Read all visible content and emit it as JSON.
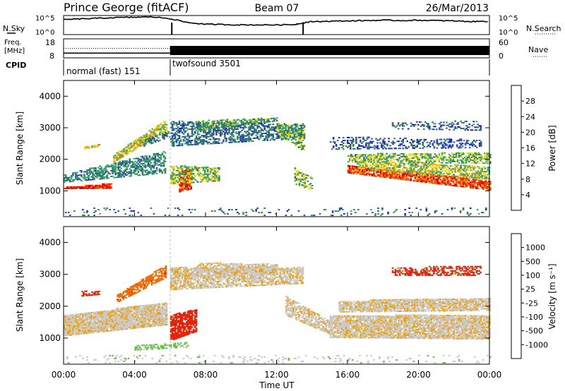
{
  "header": {
    "station": "Prince George (fitACF)",
    "beam": "Beam 07",
    "date": "26/Mar/2013"
  },
  "top_panel": {
    "left_label": "N.Sky",
    "right_label": "N.Search",
    "ticks": [
      "10^5",
      "10^0"
    ]
  },
  "freq_panel": {
    "left_label_1": "Freq.",
    "left_label_2": "[MHz]",
    "left_ticks": [
      "18",
      "8"
    ],
    "right_ticks": [
      "60",
      "0"
    ],
    "right_label": "Nave"
  },
  "cpid": {
    "label": "CPID",
    "segments": [
      {
        "name": "normal (fast) 151",
        "start_hour": 0.0,
        "end_hour": 6.0
      },
      {
        "name": "twofsound 3501",
        "start_hour": 6.0,
        "end_hour": 24.0
      }
    ]
  },
  "colors": {
    "power_scale": [
      "#1010ee",
      "#2a4aa8",
      "#2e7b4e",
      "#35a86a",
      "#f0d400",
      "#f09000",
      "#ef4a00",
      "#e00000"
    ],
    "velocity_scale": [
      "#1515c8",
      "#2f64b0",
      "#2c8a48",
      "#60c040",
      "#c8c8c8",
      "#c8c8c8",
      "#f0a000",
      "#ee6a00",
      "#e81c00",
      "#e00000"
    ]
  },
  "chart_data": [
    {
      "type": "heatmap",
      "title": "Power",
      "xlabel": "Time UT",
      "ylabel": "Slant Range [km]",
      "x_ticks": [
        "00:00",
        "04:00",
        "08:00",
        "12:00",
        "16:00",
        "20:00",
        "00:00"
      ],
      "y_ticks": [
        "1000",
        "2000",
        "3000",
        "4000"
      ],
      "xlim": [
        0,
        24
      ],
      "ylim": [
        180,
        4500
      ],
      "colorbar": {
        "label": "Power [dB]",
        "ticks": [
          "4",
          "8",
          "12",
          "16",
          "20",
          "24",
          "28"
        ],
        "range": [
          0,
          30
        ]
      },
      "regions": [
        {
          "t0": 0.0,
          "t1": 2.7,
          "r_start": [
            1050,
            1060
          ],
          "r_end": [
            1090,
            1220
          ],
          "val": 27,
          "density": 0.95
        },
        {
          "t0": 0.0,
          "t1": 5.7,
          "r_start": [
            1250,
            1550
          ],
          "r_end": [
            1500,
            2250
          ],
          "val": 10,
          "density": 0.6
        },
        {
          "t0": 1.0,
          "t1": 2.0,
          "r_start": [
            2300,
            2400
          ],
          "r_end": [
            2380,
            2480
          ],
          "val": 18,
          "density": 0.7
        },
        {
          "t0": 2.8,
          "t1": 5.8,
          "r_start": [
            1900,
            2900
          ],
          "r_end": [
            2150,
            3250
          ],
          "val": 17,
          "density": 0.75
        },
        {
          "t0": 4.5,
          "t1": 6.0,
          "r_start": [
            2400,
            2700
          ],
          "r_end": [
            2600,
            2900
          ],
          "val": 8,
          "density": 0.5
        },
        {
          "t0": 6.5,
          "t1": 7.2,
          "r_start": [
            950,
            1050
          ],
          "r_end": [
            1600,
            1700
          ],
          "val": 25,
          "density": 0.85
        },
        {
          "t0": 6.0,
          "t1": 8.8,
          "r_start": [
            1200,
            1300
          ],
          "r_end": [
            1800,
            1700
          ],
          "val": 14,
          "density": 0.6
        },
        {
          "t0": 6.0,
          "t1": 13.5,
          "r_start": [
            2400,
            2650
          ],
          "r_end": [
            3200,
            3100
          ],
          "val": 8,
          "density": 0.55
        },
        {
          "t0": 7.5,
          "t1": 12.0,
          "r_start": [
            2900,
            3200
          ],
          "r_end": [
            3200,
            3300
          ],
          "val": 12,
          "density": 0.6
        },
        {
          "t0": 12.0,
          "t1": 13.6,
          "r_start": [
            2800,
            2200
          ],
          "r_end": [
            3100,
            3050
          ],
          "val": 13,
          "density": 0.6
        },
        {
          "t0": 13.0,
          "t1": 14.0,
          "r_start": [
            1200,
            1000
          ],
          "r_end": [
            1700,
            1400
          ],
          "val": 14,
          "density": 0.5
        },
        {
          "t0": 16.0,
          "t1": 24.0,
          "r_start": [
            1550,
            1000
          ],
          "r_end": [
            1800,
            1300
          ],
          "val": 25,
          "density": 0.8
        },
        {
          "t0": 16.5,
          "t1": 24.0,
          "r_start": [
            1700,
            1350
          ],
          "r_end": [
            1950,
            1750
          ],
          "val": 16,
          "density": 0.65
        },
        {
          "t0": 16.0,
          "t1": 24.0,
          "r_start": [
            1900,
            1850
          ],
          "r_end": [
            2150,
            2200
          ],
          "val": 14,
          "density": 0.6
        },
        {
          "t0": 15.0,
          "t1": 23.5,
          "r_start": [
            2300,
            2350
          ],
          "r_end": [
            2700,
            2600
          ],
          "val": 6,
          "density": 0.35
        },
        {
          "t0": 18.5,
          "t1": 23.5,
          "r_start": [
            2950,
            2900
          ],
          "r_end": [
            3150,
            3200
          ],
          "val": 7,
          "density": 0.3
        },
        {
          "t0": 0.0,
          "t1": 24.0,
          "r_start": [
            200,
            200
          ],
          "r_end": [
            450,
            450
          ],
          "val": 8,
          "density": 0.08
        }
      ]
    },
    {
      "type": "heatmap",
      "title": "Velocity",
      "xlabel": "Time UT",
      "ylabel": "Slant Range [km]",
      "x_ticks": [
        "00:00",
        "04:00",
        "08:00",
        "12:00",
        "16:00",
        "20:00",
        "00:00"
      ],
      "y_ticks": [
        "1000",
        "2000",
        "3000",
        "4000"
      ],
      "xlim": [
        0,
        24
      ],
      "ylim": [
        180,
        4500
      ],
      "colorbar": {
        "label": "Velocity [m s⁻¹]",
        "ticks": [
          "1000",
          "500",
          "100",
          "25",
          "-25",
          "-100",
          "-500",
          "-1000"
        ],
        "range": [
          -1000,
          1000
        ]
      },
      "regions": [
        {
          "t0": 0.0,
          "t1": 5.8,
          "r_start": [
            1050,
            1400
          ],
          "r_end": [
            1700,
            2100
          ],
          "val": 0,
          "density": 0.95
        },
        {
          "t0": 3.0,
          "t1": 5.8,
          "r_start": [
            2100,
            2900
          ],
          "r_end": [
            2350,
            3300
          ],
          "val": -200,
          "density": 0.7
        },
        {
          "t0": 1.0,
          "t1": 2.0,
          "r_start": [
            2300,
            2350
          ],
          "r_end": [
            2450,
            2450
          ],
          "val": -300,
          "density": 0.7
        },
        {
          "t0": 6.0,
          "t1": 7.5,
          "r_start": [
            900,
            1200
          ],
          "r_end": [
            1700,
            1900
          ],
          "val": -400,
          "density": 0.8
        },
        {
          "t0": 4.0,
          "t1": 7.0,
          "r_start": [
            600,
            700
          ],
          "r_end": [
            750,
            850
          ],
          "val": 120,
          "density": 0.6
        },
        {
          "t0": 6.0,
          "t1": 13.5,
          "r_start": [
            2500,
            2700
          ],
          "r_end": [
            3200,
            3200
          ],
          "val": 0,
          "density": 0.75
        },
        {
          "t0": 7.5,
          "t1": 12.0,
          "r_start": [
            2900,
            3000
          ],
          "r_end": [
            3350,
            3300
          ],
          "val": 0,
          "density": 0.7
        },
        {
          "t0": 12.5,
          "t1": 15.0,
          "r_start": [
            1700,
            1100
          ],
          "r_end": [
            2300,
            1500
          ],
          "val": 0,
          "density": 0.7
        },
        {
          "t0": 15.0,
          "t1": 24.0,
          "r_start": [
            1000,
            950
          ],
          "r_end": [
            1700,
            1700
          ],
          "val": 0,
          "density": 0.9
        },
        {
          "t0": 15.5,
          "t1": 24.0,
          "r_start": [
            1800,
            1850
          ],
          "r_end": [
            2150,
            2250
          ],
          "val": 0,
          "density": 0.85
        },
        {
          "t0": 18.5,
          "t1": 23.5,
          "r_start": [
            2950,
            2950
          ],
          "r_end": [
            3200,
            3250
          ],
          "val": -300,
          "density": 0.5
        },
        {
          "t0": 0.0,
          "t1": 24.0,
          "r_start": [
            200,
            200
          ],
          "r_end": [
            450,
            450
          ],
          "val": 60,
          "density": 0.1
        }
      ]
    },
    {
      "type": "line",
      "title": "N.Sky / N.Search",
      "x_hours": [
        0,
        1,
        2,
        3,
        4,
        5,
        6,
        7,
        8,
        9,
        10,
        11,
        12,
        13,
        13.5,
        14,
        15,
        16,
        17,
        18,
        19,
        20,
        21,
        22,
        23,
        24
      ],
      "values_log10": [
        4.3,
        4.5,
        4.7,
        4.9,
        5.0,
        5.1,
        4.6,
        3.4,
        2.9,
        2.8,
        2.7,
        2.7,
        2.7,
        2.8,
        3.3,
        3.7,
        3.8,
        3.9,
        4.0,
        4.1,
        4.0,
        4.1,
        4.0,
        3.9,
        3.7,
        3.8
      ]
    },
    {
      "type": "line",
      "title": "Freq. / Nave",
      "segments": [
        {
          "t0": 0.0,
          "t1": 6.0,
          "freq_mhz": 10.5,
          "nave": 30
        },
        {
          "t0": 6.0,
          "t1": 24.0,
          "freq_mhz": 10.5,
          "nave": 35
        }
      ]
    }
  ]
}
